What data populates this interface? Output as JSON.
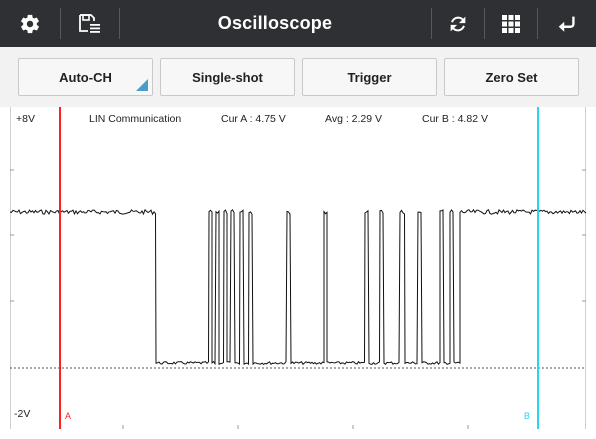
{
  "titlebar": {
    "title": "Oscilloscope",
    "left_icons": [
      "gear-icon",
      "save-list-icon"
    ],
    "right_icons": [
      "refresh-icon",
      "grid-icon",
      "back-icon"
    ],
    "background": "#2e3033"
  },
  "toolbar": {
    "auto_ch_label": "Auto-CH",
    "single_shot_label": "Single-shot",
    "trigger_label": "Trigger",
    "zero_set_label": "Zero Set"
  },
  "scope": {
    "top_voltage": "+8V",
    "bottom_voltage": "-2V",
    "channel_name": "LIN Communication",
    "cur_a": "Cur A : 4.75 V",
    "avg": "Avg : 2.29 V",
    "cur_b": "Cur B : 4.82 V",
    "cursor_a_label": "A",
    "cursor_b_label": "B",
    "cursor_a_color": "#ff2020",
    "cursor_b_color": "#2ad4f0",
    "trace_color": "#111111"
  }
}
